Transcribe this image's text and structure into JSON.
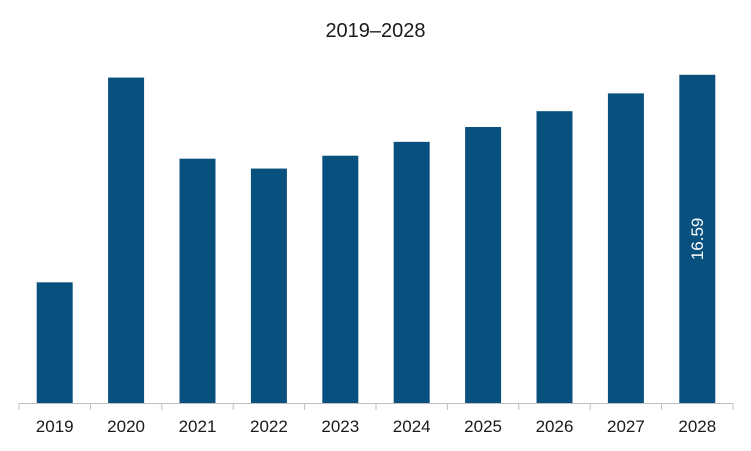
{
  "chart_data": {
    "type": "bar",
    "title": "2019–2028",
    "xlabel": "",
    "ylabel": "",
    "categories": [
      "2019",
      "2020",
      "2021",
      "2022",
      "2023",
      "2024",
      "2025",
      "2026",
      "2027",
      "2028"
    ],
    "values": [
      6.1,
      16.45,
      12.35,
      11.85,
      12.5,
      13.2,
      13.95,
      14.75,
      15.65,
      16.59
    ],
    "data_labels": [
      {
        "category": "2028",
        "text": "16.59"
      }
    ],
    "ylim": [
      0,
      18.5
    ],
    "y_axis_visible": false,
    "grid": false,
    "legend": "none",
    "bar_color": "#08517f",
    "axis_color": "#bfbfbf"
  }
}
